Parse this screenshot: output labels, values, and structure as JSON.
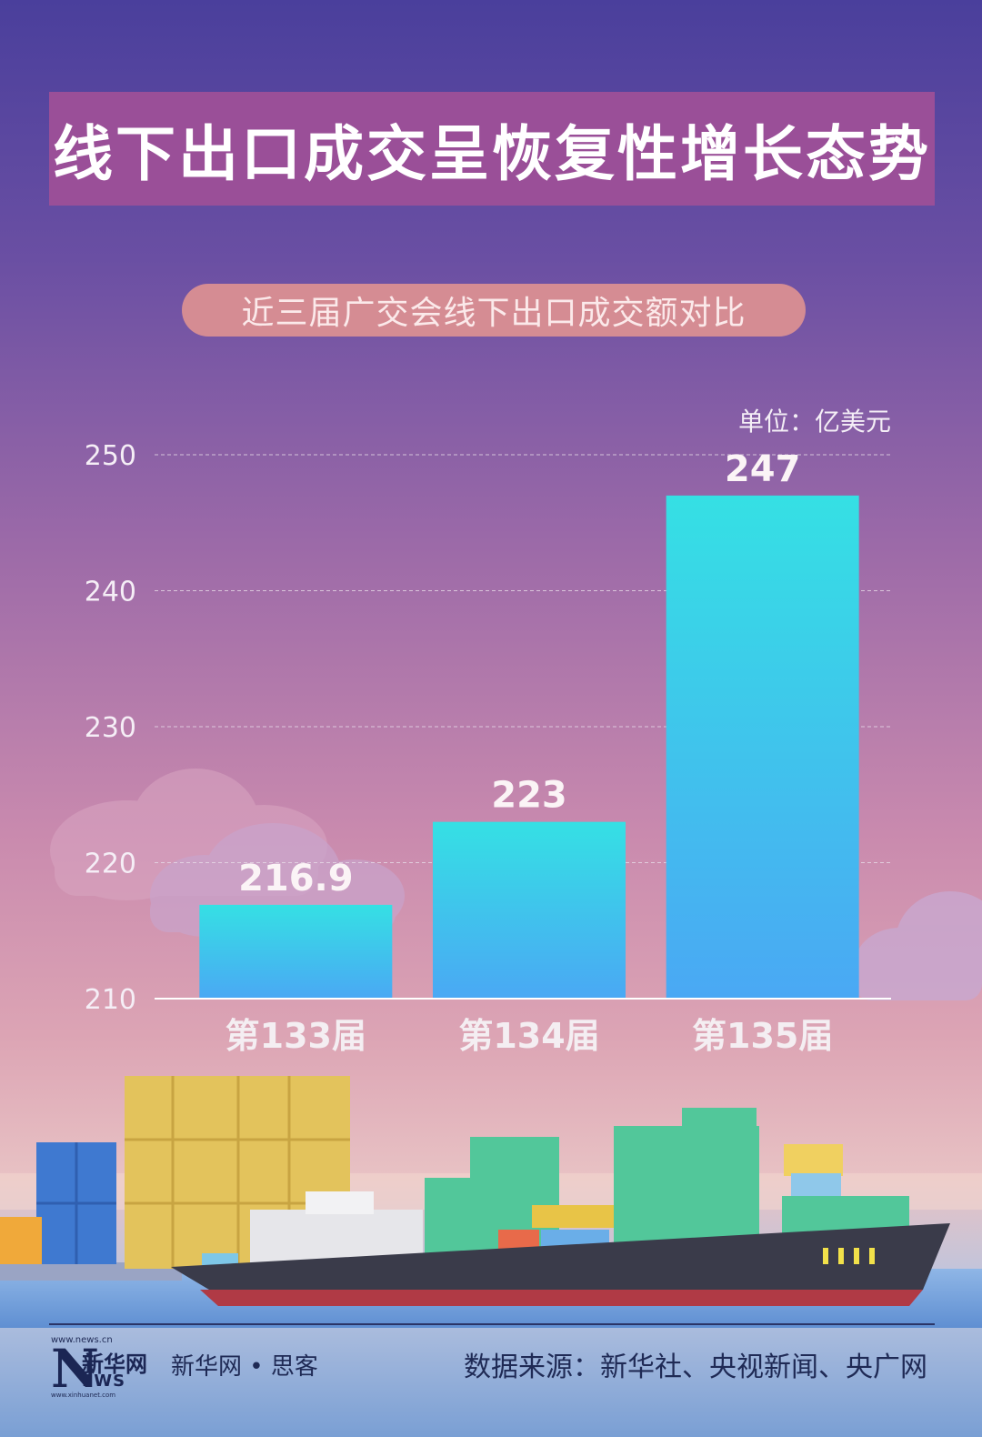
{
  "title": "线下出口成交呈恢复性增长态势",
  "subtitle": "近三届广交会线下出口成交额对比",
  "unit": "单位：亿美元",
  "chart_data": {
    "type": "bar",
    "title": "近三届广交会线下出口成交额对比",
    "categories": [
      "第133届",
      "第134届",
      "第135届"
    ],
    "values": [
      216.9,
      223,
      247
    ],
    "value_labels": [
      "216.9",
      "223",
      "247"
    ],
    "ylabel": "单位：亿美元",
    "ylim": [
      210,
      250
    ],
    "yticks": [
      "210",
      "220",
      "230",
      "240",
      "250"
    ],
    "grid": true,
    "legend": "none",
    "bar_color_top": "#35e0e4",
    "bar_color_bottom": "#4aa8f4"
  },
  "footer": {
    "logo_url_top": "www.news.cn",
    "logo_mark": "N",
    "logo_cn": "新华网",
    "logo_ews": "EWS",
    "logo_url_bottom": "www.xinhuanet.com",
    "brand": "新华网 • 思客",
    "source": "数据来源：新华社、央视新闻、央广网"
  }
}
